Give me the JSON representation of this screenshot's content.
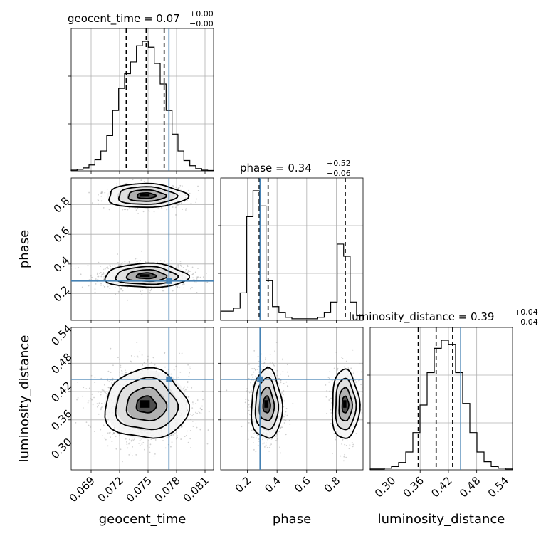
{
  "colors": {
    "truth": "#4682b4",
    "hist": "#000000",
    "grid": "#b0b0b0",
    "points": "#9a9a9a",
    "contour": "#000000"
  },
  "chart_data": {
    "type": "corner",
    "parameters": [
      "geocent_time",
      "phase",
      "luminosity_distance"
    ],
    "ranges": {
      "geocent_time": [
        0.0669,
        0.0819
      ],
      "phase": [
        0.02,
        0.98
      ],
      "luminosity_distance": [
        0.254,
        0.556
      ]
    },
    "ticks": {
      "geocent_time": [
        "0.069",
        "0.072",
        "0.075",
        "0.078",
        "0.081"
      ],
      "phase": [
        "0.2",
        "0.4",
        "0.6",
        "0.8"
      ],
      "luminosity_distance": [
        "0.30",
        "0.36",
        "0.42",
        "0.48",
        "0.54"
      ]
    },
    "tick_values": {
      "geocent_time": [
        0.069,
        0.072,
        0.075,
        0.078,
        0.081
      ],
      "phase": [
        0.2,
        0.4,
        0.6,
        0.8
      ],
      "luminosity_distance": [
        0.3,
        0.36,
        0.42,
        0.48,
        0.54
      ]
    },
    "truths": {
      "geocent_time": 0.0772,
      "phase": 0.285,
      "luminosity_distance": 0.446
    },
    "titles": {
      "geocent_time": {
        "text": "geocent_time = 0.07",
        "sup": "+0.00",
        "sub": "−0.00"
      },
      "phase": {
        "text": "phase = 0.34",
        "sup": "+0.52",
        "sub": "−0.06"
      },
      "luminosity_distance": {
        "text": "luminosity_distance = 0.39",
        "sup": "+0.04",
        "sub": "−0.04"
      }
    },
    "quantiles": {
      "geocent_time": [
        0.0727,
        0.0748,
        0.0767
      ],
      "phase": [
        0.28,
        0.34,
        0.86
      ],
      "luminosity_distance": [
        0.356,
        0.394,
        0.429
      ]
    },
    "histograms": {
      "geocent_time": {
        "edges_range": [
          0.0669,
          0.0819
        ],
        "counts": [
          1,
          2,
          4,
          8,
          15,
          27,
          48,
          82,
          112,
          132,
          148,
          170,
          176,
          168,
          146,
          118,
          82,
          50,
          27,
          14,
          7,
          3,
          1,
          0.5
        ]
      },
      "phase": {
        "edges_range": [
          0.02,
          0.98
        ],
        "counts": [
          6,
          6,
          8,
          18,
          68,
          85,
          75,
          26,
          9,
          5,
          2,
          1,
          1,
          1,
          1,
          2,
          5,
          12,
          50,
          42,
          12,
          3
        ]
      },
      "luminosity_distance": {
        "edges_range": [
          0.254,
          0.556
        ],
        "counts": [
          1,
          1,
          2,
          4,
          9,
          22,
          46,
          80,
          120,
          150,
          160,
          155,
          120,
          82,
          46,
          22,
          10,
          4,
          2,
          1
        ]
      }
    },
    "modes_2d": {
      "phase_vs_geocent": [
        {
          "x": 0.0748,
          "y": 0.32,
          "sx": 0.0019,
          "sy": 0.035,
          "w": 0.72
        },
        {
          "x": 0.0748,
          "y": 0.86,
          "sx": 0.0018,
          "sy": 0.035,
          "w": 0.28
        }
      ],
      "dist_vs_geocent": [
        {
          "x": 0.0748,
          "y": 0.392,
          "sx": 0.0019,
          "sy": 0.032,
          "w": 1.0
        }
      ],
      "dist_vs_phase": [
        {
          "x": 0.33,
          "y": 0.392,
          "sx": 0.045,
          "sy": 0.032,
          "w": 0.72
        },
        {
          "x": 0.86,
          "y": 0.392,
          "sx": 0.04,
          "sy": 0.032,
          "w": 0.28
        }
      ]
    }
  }
}
